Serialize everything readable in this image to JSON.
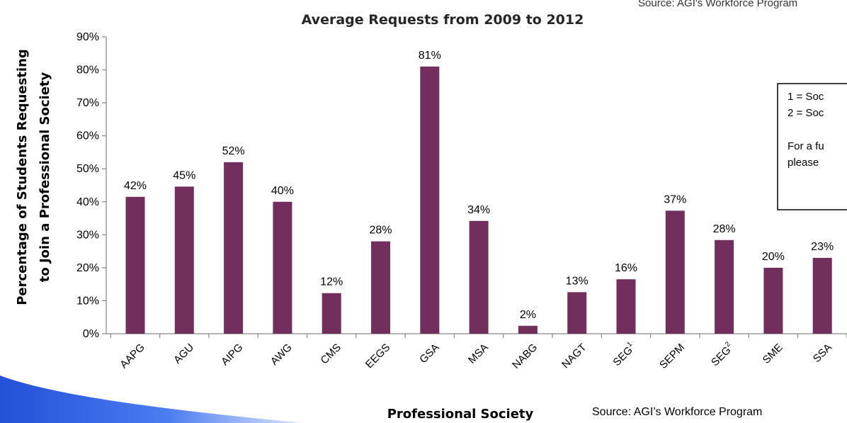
{
  "chart_data": {
    "type": "bar",
    "title": "Average Requests from 2009 to 2012",
    "xlabel": "Professional Society",
    "ylabel_lines": [
      "Percentage of Students Requesting",
      "to Join a Professional Society"
    ],
    "categories": [
      "AAPG",
      "AGU",
      "AIPG",
      "AWG",
      "CMS",
      "EEGS",
      "GSA",
      "MSA",
      "NABG",
      "NAGT",
      "SEG",
      "SEPM",
      "SEG",
      "SME",
      "SSA"
    ],
    "category_superscripts": [
      "",
      "",
      "",
      "",
      "",
      "",
      "",
      "",
      "",
      "",
      "1",
      "",
      "2",
      "",
      ""
    ],
    "values": [
      41.5,
      44.6,
      52.0,
      40.0,
      12.3,
      28.0,
      81.0,
      34.2,
      2.4,
      12.6,
      16.5,
      37.3,
      28.4,
      20.0,
      23.0
    ],
    "data_labels": [
      "42%",
      "45%",
      "52%",
      "40%",
      "12%",
      "28%",
      "81%",
      "34%",
      "2%",
      "13%",
      "16%",
      "37%",
      "28%",
      "20%",
      "23%"
    ],
    "ylim": [
      0,
      90
    ],
    "y_ticks": [
      "0%",
      "10%",
      "20%",
      "30%",
      "40%",
      "50%",
      "60%",
      "70%",
      "80%",
      "90%"
    ],
    "bar_color": "#722f5e",
    "grid": false,
    "legend": "none"
  },
  "source_bottom": "Source: AGI’s Workforce Program",
  "source_top": "Source: AGI's Workforce Program",
  "note_box": {
    "lines": [
      "1 = Soc",
      "2 = Soc",
      "",
      "For a fu",
      "please"
    ]
  },
  "colors": {
    "accent_blue": "#2f5fd8"
  }
}
